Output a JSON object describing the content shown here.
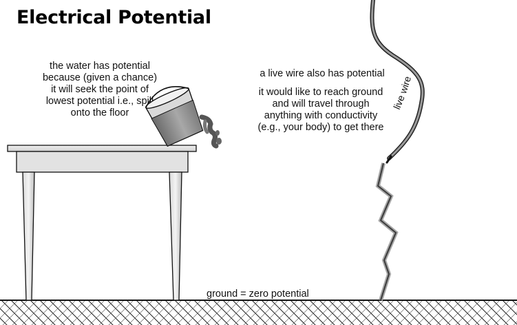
{
  "title": "Electrical Potential",
  "water_text": [
    "the water has potential",
    "because (given a chance)",
    "it will seek the point of",
    "lowest potential i.e., spill",
    "onto the floor"
  ],
  "wire_heading": "a live wire also has potential",
  "wire_text": [
    "it would like to reach ground",
    "and will travel through",
    "anything with conductivity",
    "(e.g., your body) to get there"
  ],
  "wire_label": "live wire",
  "ground_label": "ground = zero potential"
}
